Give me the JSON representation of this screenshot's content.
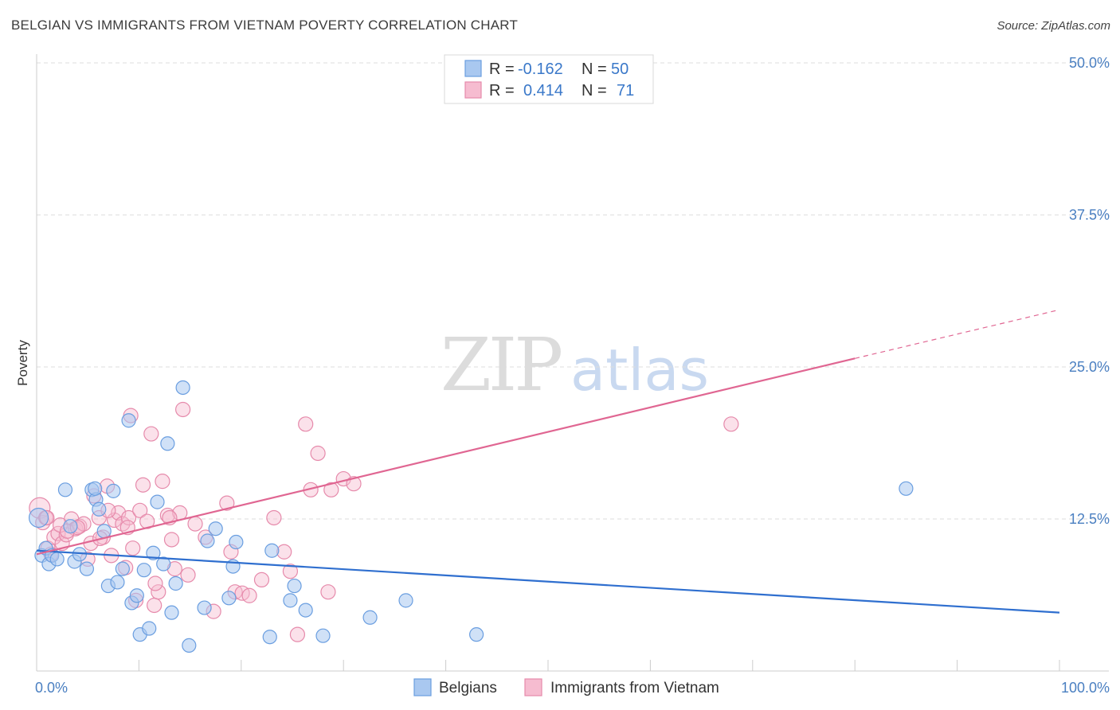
{
  "title": "BELGIAN VS IMMIGRANTS FROM VIETNAM POVERTY CORRELATION CHART",
  "source": "Source: ZipAtlas.com",
  "watermark": {
    "part1": "ZIP",
    "part2": "atlas"
  },
  "colors": {
    "belgians_fill": "#a9c8f0",
    "belgians_stroke": "#6a9ee0",
    "belgians_line": "#2f6fcf",
    "vietnam_fill": "#f6bcd0",
    "vietnam_stroke": "#e68aab",
    "vietnam_line": "#e06692",
    "grid": "#dddddd",
    "axis_text": "#4a7fc1"
  },
  "legend": {
    "rows": [
      {
        "r_label": "R =",
        "r_value": "-0.162",
        "n_label": "N =",
        "n_value": "50"
      },
      {
        "r_label": "R =",
        "r_value": "0.414",
        "n_label": "N =",
        "n_value": "71"
      }
    ]
  },
  "bottom_legend": {
    "items": [
      "Belgians",
      "Immigrants from Vietnam"
    ]
  },
  "chart_data": {
    "type": "scatter",
    "xlabel": "",
    "ylabel": "Poverty",
    "xlim": [
      0,
      100
    ],
    "ylim": [
      0,
      50
    ],
    "x_tick_labels": [
      {
        "value": 0,
        "label": "0.0%"
      },
      {
        "value": 100,
        "label": "100.0%"
      }
    ],
    "y_tick_labels": [
      {
        "value": 12.5,
        "label": "12.5%"
      },
      {
        "value": 25,
        "label": "25.0%"
      },
      {
        "value": 37.5,
        "label": "37.5%"
      },
      {
        "value": 50,
        "label": "50.0%"
      }
    ],
    "grid": true,
    "series": [
      {
        "name": "Belgians",
        "R": -0.162,
        "N": 50,
        "trend": {
          "x0": 0,
          "y0": 9.9,
          "x1": 100,
          "y1": 4.8
        },
        "points": [
          [
            0.2,
            12.6
          ],
          [
            0.5,
            9.5
          ],
          [
            0.9,
            10.1
          ],
          [
            1.2,
            8.8
          ],
          [
            1.5,
            9.5
          ],
          [
            2.0,
            9.2
          ],
          [
            2.8,
            14.9
          ],
          [
            3.3,
            11.9
          ],
          [
            3.7,
            9.0
          ],
          [
            4.2,
            9.6
          ],
          [
            4.9,
            8.4
          ],
          [
            5.4,
            14.9
          ],
          [
            5.8,
            14.1
          ],
          [
            6.1,
            13.3
          ],
          [
            6.6,
            11.5
          ],
          [
            7.0,
            7.0
          ],
          [
            7.5,
            14.8
          ],
          [
            7.9,
            7.3
          ],
          [
            8.4,
            8.4
          ],
          [
            9.0,
            20.6
          ],
          [
            9.3,
            5.6
          ],
          [
            9.8,
            6.2
          ],
          [
            10.1,
            3.0
          ],
          [
            10.5,
            8.3
          ],
          [
            11.0,
            3.5
          ],
          [
            11.4,
            9.7
          ],
          [
            11.8,
            13.9
          ],
          [
            12.4,
            8.8
          ],
          [
            12.8,
            18.7
          ],
          [
            13.2,
            4.8
          ],
          [
            13.6,
            7.2
          ],
          [
            14.3,
            23.3
          ],
          [
            14.9,
            2.1
          ],
          [
            16.4,
            5.2
          ],
          [
            16.7,
            10.7
          ],
          [
            17.5,
            11.7
          ],
          [
            18.8,
            6.0
          ],
          [
            19.2,
            8.6
          ],
          [
            19.5,
            10.6
          ],
          [
            22.8,
            2.8
          ],
          [
            23.0,
            9.9
          ],
          [
            24.8,
            5.8
          ],
          [
            25.2,
            7.0
          ],
          [
            26.3,
            5.0
          ],
          [
            28.0,
            2.9
          ],
          [
            32.6,
            4.4
          ],
          [
            36.1,
            5.8
          ],
          [
            43.0,
            3.0
          ],
          [
            85.0,
            15.0
          ],
          [
            5.7,
            15.0
          ]
        ]
      },
      {
        "name": "Immigrants from Vietnam",
        "R": 0.414,
        "N": 71,
        "trend": {
          "x0": 0,
          "y0": 9.6,
          "x1": 80,
          "y1": 25.7,
          "dash_x1": 100,
          "dash_y1": 29.7
        },
        "points": [
          [
            0.3,
            13.4
          ],
          [
            0.6,
            12.2
          ],
          [
            0.9,
            12.6
          ],
          [
            1.1,
            10.1
          ],
          [
            1.4,
            9.6
          ],
          [
            1.7,
            11.0
          ],
          [
            2.1,
            11.3
          ],
          [
            2.5,
            10.5
          ],
          [
            2.9,
            11.2
          ],
          [
            3.4,
            12.5
          ],
          [
            3.8,
            11.7
          ],
          [
            4.2,
            11.9
          ],
          [
            4.6,
            12.1
          ],
          [
            5.0,
            9.2
          ],
          [
            5.3,
            10.5
          ],
          [
            5.6,
            14.4
          ],
          [
            6.1,
            12.6
          ],
          [
            6.5,
            11.0
          ],
          [
            6.9,
            15.2
          ],
          [
            7.3,
            9.5
          ],
          [
            7.6,
            12.4
          ],
          [
            8.0,
            13.0
          ],
          [
            8.4,
            12.1
          ],
          [
            8.7,
            8.5
          ],
          [
            9.0,
            12.6
          ],
          [
            9.2,
            21.0
          ],
          [
            9.4,
            10.1
          ],
          [
            9.7,
            5.8
          ],
          [
            10.1,
            13.2
          ],
          [
            10.4,
            15.3
          ],
          [
            10.8,
            12.3
          ],
          [
            11.2,
            19.5
          ],
          [
            11.5,
            5.4
          ],
          [
            11.9,
            6.5
          ],
          [
            12.3,
            15.6
          ],
          [
            12.8,
            12.8
          ],
          [
            13.2,
            10.8
          ],
          [
            13.5,
            8.4
          ],
          [
            14.0,
            13.0
          ],
          [
            14.3,
            21.5
          ],
          [
            14.8,
            7.9
          ],
          [
            16.5,
            11.0
          ],
          [
            17.3,
            4.9
          ],
          [
            18.6,
            13.8
          ],
          [
            19.4,
            6.5
          ],
          [
            20.1,
            6.4
          ],
          [
            20.8,
            6.2
          ],
          [
            23.2,
            12.6
          ],
          [
            24.2,
            9.8
          ],
          [
            24.8,
            8.2
          ],
          [
            25.5,
            3.0
          ],
          [
            26.3,
            20.3
          ],
          [
            26.8,
            14.9
          ],
          [
            27.5,
            17.9
          ],
          [
            28.8,
            14.9
          ],
          [
            30.0,
            15.8
          ],
          [
            31.0,
            15.4
          ],
          [
            13.0,
            12.6
          ],
          [
            2.3,
            12.0
          ],
          [
            3.0,
            11.5
          ],
          [
            4.0,
            11.8
          ],
          [
            6.2,
            10.9
          ],
          [
            7.0,
            13.2
          ],
          [
            8.9,
            11.8
          ],
          [
            11.6,
            7.2
          ],
          [
            15.5,
            12.1
          ],
          [
            19.0,
            9.8
          ],
          [
            22.0,
            7.5
          ],
          [
            28.5,
            6.5
          ],
          [
            67.9,
            20.3
          ],
          [
            1.0,
            12.6
          ]
        ]
      }
    ]
  }
}
